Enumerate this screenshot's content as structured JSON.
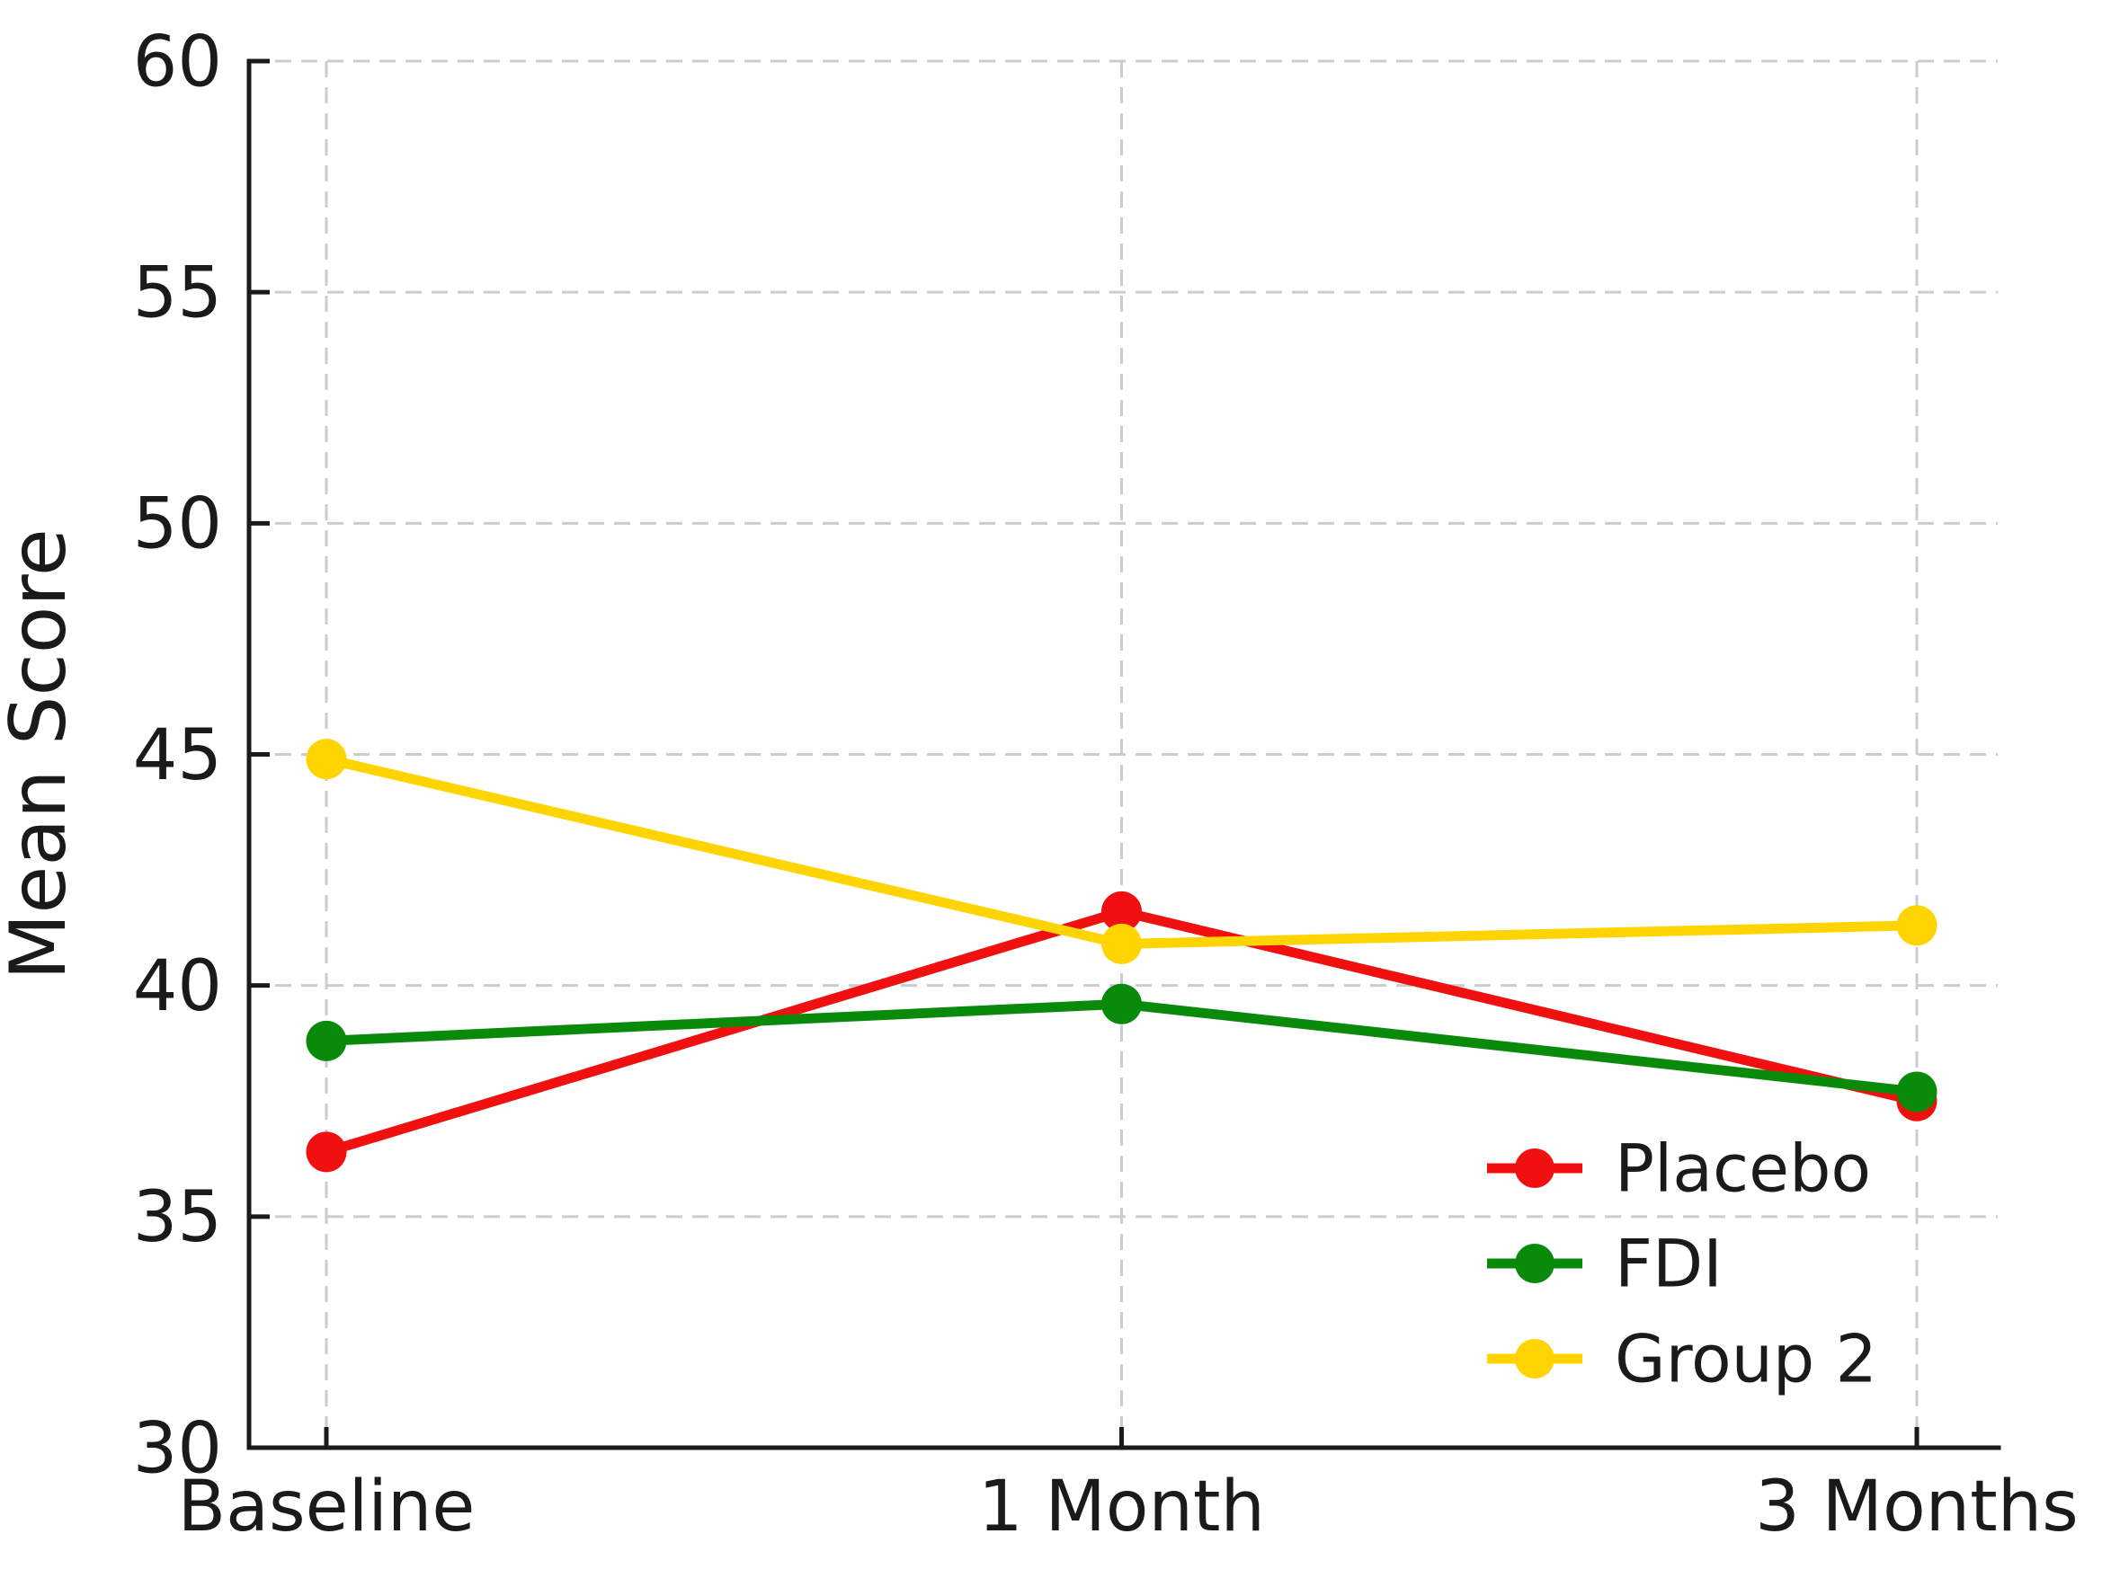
{
  "figure": {
    "background": "#ffffff"
  },
  "chart_data": {
    "type": "line",
    "categories": [
      "Baseline",
      "1 Month",
      "3 Months"
    ],
    "series": [
      {
        "name": "Placebo",
        "color": "#f01010",
        "values": [
          36.4,
          41.6,
          37.5
        ]
      },
      {
        "name": "FDI",
        "color": "#0a8a0a",
        "values": [
          38.8,
          39.6,
          37.7
        ]
      },
      {
        "name": "Group 2",
        "color": "#ffd400",
        "values": [
          44.9,
          40.9,
          41.3
        ]
      }
    ],
    "title": "",
    "xlabel": "",
    "ylabel": "Mean Score",
    "ylim": [
      30,
      60
    ],
    "yticks": [
      30,
      35,
      40,
      45,
      50,
      55,
      60
    ],
    "grid": true,
    "grid_style": "dashed",
    "grid_color": "#cccccc",
    "axis_color": "#1a1a1a",
    "legend_position": "lower right",
    "legend_frame": false
  }
}
